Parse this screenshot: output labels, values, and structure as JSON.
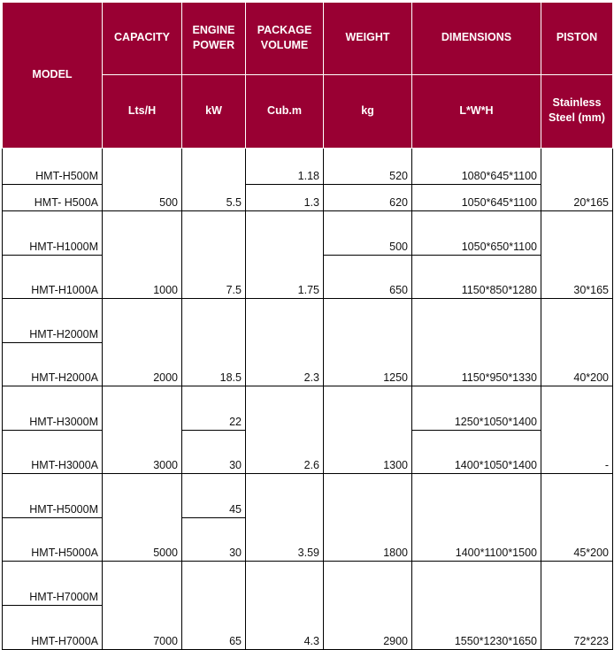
{
  "header": {
    "model": "MODEL",
    "columns": [
      {
        "title": "CAPACITY",
        "unit": "Lts/H"
      },
      {
        "title": "ENGINE POWER",
        "unit": "kW"
      },
      {
        "title": "PACKAGE VOLUME",
        "unit": "Cub.m"
      },
      {
        "title": "WEIGHT",
        "unit": "kg"
      },
      {
        "title": "DIMENSIONS",
        "unit": "L*W*H"
      },
      {
        "title": "PISTON",
        "unit": "Stainless Steel (mm)"
      }
    ]
  },
  "accent_color": "#990033",
  "groups": [
    {
      "models": [
        "HMT-H500M",
        "HMT- H500A"
      ],
      "cells": [
        "500",
        "5.5",
        [
          "1.18",
          "1.3"
        ],
        [
          "520",
          "620"
        ],
        [
          "1080*645*1100",
          "1050*645*1100"
        ],
        "20*165"
      ]
    },
    {
      "models": [
        "HMT-H1000M",
        "HMT-H1000A"
      ],
      "cells": [
        "1000",
        "7.5",
        "1.75",
        [
          "500",
          "650"
        ],
        [
          "1050*650*1100",
          "1150*850*1280"
        ],
        "30*165"
      ]
    },
    {
      "models": [
        "HMT-H2000M",
        "HMT-H2000A"
      ],
      "cells": [
        "2000",
        "18.5",
        "2.3",
        "1250",
        "1150*950*1330",
        "40*200"
      ]
    },
    {
      "models": [
        "HMT-H3000M",
        "HMT-H3000A"
      ],
      "cells": [
        "3000",
        [
          "22",
          "30"
        ],
        "2.6",
        "1300",
        [
          "1250*1050*1400",
          "1400*1050*1400"
        ],
        "-"
      ]
    },
    {
      "models": [
        "HMT-H5000M",
        "HMT-H5000A"
      ],
      "cells": [
        "5000",
        [
          "45",
          "30"
        ],
        "3.59",
        "1800",
        "1400*1100*1500",
        "45*200"
      ]
    },
    {
      "models": [
        "HMT-H7000M",
        "HMT-H7000A"
      ],
      "cells": [
        "7000",
        "65",
        "4.3",
        "2900",
        "1550*1230*1650",
        "72*223"
      ]
    }
  ]
}
